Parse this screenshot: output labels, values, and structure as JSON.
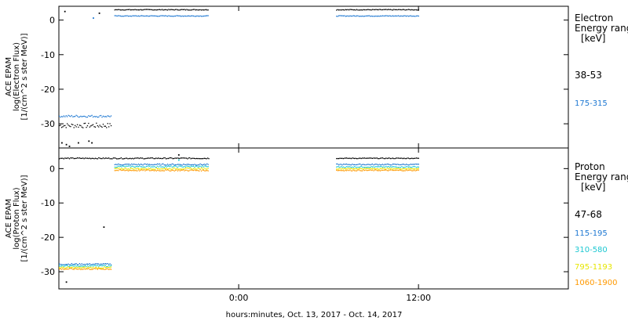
{
  "x_axis": {
    "label": "hours:minutes, Oct. 13, 2017 - Oct. 14, 2017",
    "range_hours": [
      -12,
      22
    ],
    "ticks": [
      {
        "value": 0,
        "label": "0:00"
      },
      {
        "value": 12,
        "label": "12:00"
      }
    ]
  },
  "chart_data": [
    {
      "type": "scatter",
      "panel": "top",
      "title": "",
      "ylabel": [
        "ACE EPAM",
        "log(Electron Flux)",
        "[1/(cm^2 s ster MeV)]"
      ],
      "ylim": [
        -37,
        4
      ],
      "yticks": [
        0,
        -10,
        -20,
        -30
      ],
      "legend": {
        "placement": "right",
        "header": [
          "Electron",
          "Energy range",
          "[keV]"
        ],
        "entries": [
          {
            "label": "38-53",
            "color": "#000000"
          },
          {
            "label": "175-315",
            "color": "#1e78d2"
          }
        ]
      },
      "series": [
        {
          "name": "38-53",
          "color": "#000000",
          "segments": [
            {
              "x": [
                -12.0,
                -8.5
              ],
              "y": -30.5,
              "jitter": 0.7
            },
            {
              "x": [
                -8.3,
                -2.0
              ],
              "y": 3.0,
              "jitter": 0.1
            },
            {
              "x": [
                6.5,
                12.0
              ],
              "y": 3.0,
              "jitter": 0.1
            }
          ],
          "points": [
            {
              "x": -11.8,
              "y": -35.5
            },
            {
              "x": -11.5,
              "y": -36.0
            },
            {
              "x": -11.3,
              "y": -36.5
            },
            {
              "x": -11.6,
              "y": 2.5
            },
            {
              "x": -10.7,
              "y": -35.5
            },
            {
              "x": -10.0,
              "y": -35.0
            },
            {
              "x": -9.8,
              "y": -35.5
            },
            {
              "x": -9.3,
              "y": 2.0
            }
          ]
        },
        {
          "name": "175-315",
          "color": "#1e78d2",
          "segments": [
            {
              "x": [
                -12.0,
                -8.5
              ],
              "y": -27.8,
              "jitter": 0.3
            },
            {
              "x": [
                -8.3,
                -2.0
              ],
              "y": 1.2,
              "jitter": 0.1
            },
            {
              "x": [
                6.5,
                12.0
              ],
              "y": 1.2,
              "jitter": 0.1
            }
          ],
          "points": [
            {
              "x": -9.7,
              "y": 0.6
            }
          ]
        }
      ]
    },
    {
      "type": "scatter",
      "panel": "bottom",
      "title": "",
      "ylabel": [
        "ACE EPAM",
        "log(Proton Flux)",
        "[1/(cm^2 s ster MeV)]"
      ],
      "ylim": [
        -35,
        6
      ],
      "yticks": [
        0,
        -10,
        -20,
        -30
      ],
      "legend": {
        "placement": "right",
        "header": [
          "Proton",
          "Energy range",
          "[keV]"
        ],
        "entries": [
          {
            "label": "47-68",
            "color": "#000000"
          },
          {
            "label": "115-195",
            "color": "#1e78d2"
          },
          {
            "label": "310-580",
            "color": "#1ec8d2"
          },
          {
            "label": "795-1193",
            "color": "#e6e600"
          },
          {
            "label": "1060-1900",
            "color": "#ff9900"
          }
        ]
      },
      "series": [
        {
          "name": "47-68",
          "color": "#000000",
          "segments": [
            {
              "x": [
                -12.0,
                -2.0
              ],
              "y": 3.0,
              "jitter": 0.15
            },
            {
              "x": [
                6.5,
                12.0
              ],
              "y": 3.0,
              "jitter": 0.1
            }
          ],
          "points": [
            {
              "x": -9.0,
              "y": -17.0
            },
            {
              "x": -11.5,
              "y": -33.0
            },
            {
              "x": -4.0,
              "y": 4.0
            }
          ]
        },
        {
          "name": "115-195",
          "color": "#1e78d2",
          "segments": [
            {
              "x": [
                -12.0,
                -8.5
              ],
              "y": -27.8,
              "jitter": 0.2
            },
            {
              "x": [
                -8.3,
                -2.0
              ],
              "y": 1.2,
              "jitter": 0.2
            },
            {
              "x": [
                6.5,
                12.0
              ],
              "y": 1.2,
              "jitter": 0.15
            }
          ],
          "points": []
        },
        {
          "name": "310-580",
          "color": "#1ec8d2",
          "segments": [
            {
              "x": [
                -12.0,
                -8.5
              ],
              "y": -28.3,
              "jitter": 0.2
            },
            {
              "x": [
                -8.3,
                -2.0
              ],
              "y": 0.6,
              "jitter": 0.2
            },
            {
              "x": [
                6.5,
                12.0
              ],
              "y": 0.5,
              "jitter": 0.15
            }
          ],
          "points": [
            {
              "x": -4.0,
              "y": 2.5
            }
          ]
        },
        {
          "name": "795-1193",
          "color": "#e6e600",
          "segments": [
            {
              "x": [
                -12.0,
                -8.5
              ],
              "y": -28.8,
              "jitter": 0.2
            },
            {
              "x": [
                -8.3,
                -2.0
              ],
              "y": 0.0,
              "jitter": 0.2
            },
            {
              "x": [
                6.5,
                12.0
              ],
              "y": 0.0,
              "jitter": 0.15
            }
          ],
          "points": []
        },
        {
          "name": "1060-1900",
          "color": "#ff9900",
          "segments": [
            {
              "x": [
                -12.0,
                -8.5
              ],
              "y": -29.2,
              "jitter": 0.2
            },
            {
              "x": [
                -8.3,
                -2.0
              ],
              "y": -0.5,
              "jitter": 0.2
            },
            {
              "x": [
                6.5,
                12.0
              ],
              "y": -0.5,
              "jitter": 0.15
            }
          ],
          "points": []
        }
      ]
    }
  ]
}
